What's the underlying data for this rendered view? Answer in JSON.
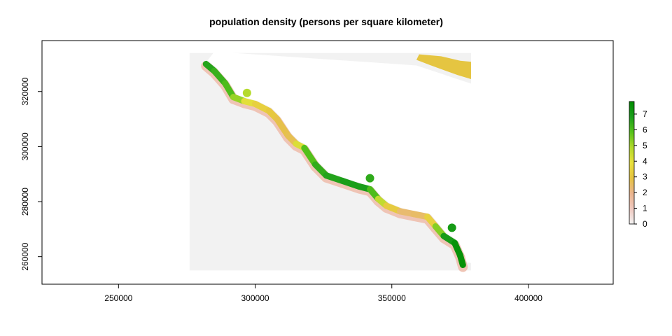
{
  "chart_data": {
    "type": "heatmap",
    "title": "population density (persons per square kilometer)",
    "xlabel": "",
    "ylabel": "",
    "xlim": [
      222000,
      431000
    ],
    "ylim": [
      250000,
      338500
    ],
    "x_ticks": [
      250000,
      300000,
      350000,
      400000
    ],
    "y_ticks": [
      260000,
      280000,
      300000,
      320000
    ],
    "grid": false,
    "legend": {
      "type": "colorbar",
      "placement": "right",
      "range": [
        0,
        7.8
      ],
      "ticks": [
        0,
        1,
        2,
        3,
        4,
        5,
        6,
        7
      ],
      "colors": [
        "#f2f2f2",
        "#f0c9c0",
        "#ebb58f",
        "#e5c341",
        "#e9e03c",
        "#b1d92b",
        "#56c21a",
        "#1b9e1b",
        "#008c00"
      ]
    },
    "background_value": 0,
    "background_extent": {
      "x": [
        276000,
        379000
      ],
      "y": [
        255000,
        334000
      ]
    },
    "upper_right_band": {
      "value": 3,
      "points": [
        [
          360000,
          333500
        ],
        [
          368000,
          332800
        ],
        [
          375000,
          331200
        ],
        [
          379000,
          330800
        ],
        [
          379000,
          324500
        ],
        [
          374000,
          326000
        ],
        [
          369000,
          327800
        ],
        [
          364000,
          329600
        ],
        [
          359000,
          331500
        ]
      ]
    },
    "coastal_band": {
      "centerline": [
        {
          "x": 282000,
          "y": 330000,
          "v": 6.8
        },
        {
          "x": 285000,
          "y": 327500,
          "v": 6.5
        },
        {
          "x": 289000,
          "y": 323000,
          "v": 6.2
        },
        {
          "x": 292000,
          "y": 318000,
          "v": 5.8
        },
        {
          "x": 296000,
          "y": 316500,
          "v": 4.5
        },
        {
          "x": 300000,
          "y": 315500,
          "v": 3.5
        },
        {
          "x": 305000,
          "y": 313000,
          "v": 3.2
        },
        {
          "x": 308000,
          "y": 310000,
          "v": 3.0
        },
        {
          "x": 312000,
          "y": 304000,
          "v": 2.6
        },
        {
          "x": 315000,
          "y": 301000,
          "v": 2.8
        },
        {
          "x": 318000,
          "y": 299500,
          "v": 5.5
        },
        {
          "x": 322000,
          "y": 293500,
          "v": 6.3
        },
        {
          "x": 326000,
          "y": 289500,
          "v": 6.6
        },
        {
          "x": 332000,
          "y": 287500,
          "v": 6.8
        },
        {
          "x": 338000,
          "y": 285500,
          "v": 6.9
        },
        {
          "x": 342000,
          "y": 284500,
          "v": 6.8
        },
        {
          "x": 345000,
          "y": 281000,
          "v": 5.2
        },
        {
          "x": 348000,
          "y": 278500,
          "v": 4.0
        },
        {
          "x": 353000,
          "y": 276500,
          "v": 2.4
        },
        {
          "x": 358000,
          "y": 275500,
          "v": 2.3
        },
        {
          "x": 363000,
          "y": 274500,
          "v": 2.6
        },
        {
          "x": 366000,
          "y": 271000,
          "v": 4.2
        },
        {
          "x": 369000,
          "y": 267500,
          "v": 6.5
        },
        {
          "x": 373000,
          "y": 265000,
          "v": 7.4
        },
        {
          "x": 375000,
          "y": 260500,
          "v": 7.6
        },
        {
          "x": 376000,
          "y": 257000,
          "v": 7.4
        }
      ]
    },
    "inlets": [
      {
        "x": 297000,
        "y": 319500,
        "v": 4.8
      },
      {
        "x": 342000,
        "y": 288500,
        "v": 6.5
      },
      {
        "x": 372000,
        "y": 270500,
        "v": 7.0
      }
    ]
  }
}
